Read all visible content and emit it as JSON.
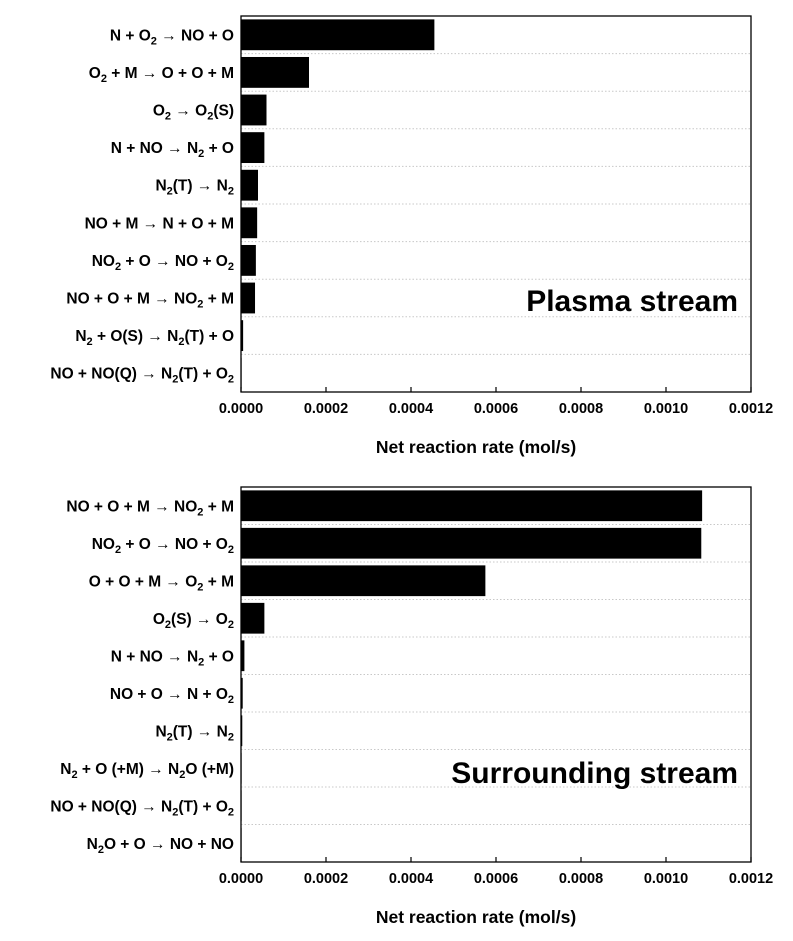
{
  "chart_data": [
    {
      "type": "bar",
      "orientation": "horizontal",
      "annotation": "Plasma stream",
      "xlabel": "Net reaction rate (mol/s)",
      "xlim": [
        0,
        0.0012
      ],
      "xticks": [
        "0.0000",
        "0.0002",
        "0.0004",
        "0.0006",
        "0.0008",
        "0.0010",
        "0.0012"
      ],
      "grid": "horizontal dotted",
      "categories": [
        [
          {
            "t": "N + O"
          },
          {
            "t": "2",
            "s": 1
          },
          {
            "t": " → NO + O"
          }
        ],
        [
          {
            "t": "O"
          },
          {
            "t": "2",
            "s": 1
          },
          {
            "t": " + M → O + O + M"
          }
        ],
        [
          {
            "t": "O"
          },
          {
            "t": "2",
            "s": 1
          },
          {
            "t": " → O"
          },
          {
            "t": "2",
            "s": 1
          },
          {
            "t": "(S)"
          }
        ],
        [
          {
            "t": "N + NO → N"
          },
          {
            "t": "2",
            "s": 1
          },
          {
            "t": " + O"
          }
        ],
        [
          {
            "t": "N"
          },
          {
            "t": "2",
            "s": 1
          },
          {
            "t": "(T) → N"
          },
          {
            "t": "2",
            "s": 1
          }
        ],
        [
          {
            "t": "NO + M → N + O + M"
          }
        ],
        [
          {
            "t": "NO"
          },
          {
            "t": "2",
            "s": 1
          },
          {
            "t": " + O → NO + O"
          },
          {
            "t": "2",
            "s": 1
          }
        ],
        [
          {
            "t": "NO + O + M → NO"
          },
          {
            "t": "2",
            "s": 1
          },
          {
            "t": " + M"
          }
        ],
        [
          {
            "t": "N"
          },
          {
            "t": "2",
            "s": 1
          },
          {
            "t": " + O(S) → N"
          },
          {
            "t": "2",
            "s": 1
          },
          {
            "t": "(T) + O"
          }
        ],
        [
          {
            "t": "NO + NO(Q) → N"
          },
          {
            "t": "2",
            "s": 1
          },
          {
            "t": "(T) + O"
          },
          {
            "t": "2",
            "s": 1
          }
        ]
      ],
      "values": [
        0.000455,
        0.00016,
        6e-05,
        5.5e-05,
        4e-05,
        3.8e-05,
        3.5e-05,
        3.3e-05,
        5e-06,
        5e-07
      ]
    },
    {
      "type": "bar",
      "orientation": "horizontal",
      "annotation": "Surrounding stream",
      "xlabel": "Net reaction rate (mol/s)",
      "xlim": [
        0,
        0.0012
      ],
      "xticks": [
        "0.0000",
        "0.0002",
        "0.0004",
        "0.0006",
        "0.0008",
        "0.0010",
        "0.0012"
      ],
      "grid": "horizontal dotted",
      "categories": [
        [
          {
            "t": "NO + O + M → NO"
          },
          {
            "t": "2",
            "s": 1
          },
          {
            "t": " + M"
          }
        ],
        [
          {
            "t": "NO"
          },
          {
            "t": "2",
            "s": 1
          },
          {
            "t": " + O → NO + O"
          },
          {
            "t": "2",
            "s": 1
          }
        ],
        [
          {
            "t": "O + O + M → O"
          },
          {
            "t": "2",
            "s": 1
          },
          {
            "t": " + M"
          }
        ],
        [
          {
            "t": "O"
          },
          {
            "t": "2",
            "s": 1
          },
          {
            "t": "(S) → O"
          },
          {
            "t": "2",
            "s": 1
          }
        ],
        [
          {
            "t": "N + NO → N"
          },
          {
            "t": "2",
            "s": 1
          },
          {
            "t": " + O"
          }
        ],
        [
          {
            "t": "NO + O → N + O"
          },
          {
            "t": "2",
            "s": 1
          }
        ],
        [
          {
            "t": "N"
          },
          {
            "t": "2",
            "s": 1
          },
          {
            "t": "(T) → N"
          },
          {
            "t": "2",
            "s": 1
          }
        ],
        [
          {
            "t": "N"
          },
          {
            "t": "2",
            "s": 1
          },
          {
            "t": " + O (+M) → N"
          },
          {
            "t": "2",
            "s": 1
          },
          {
            "t": "O (+M)"
          }
        ],
        [
          {
            "t": "NO + NO(Q) → N"
          },
          {
            "t": "2",
            "s": 1
          },
          {
            "t": "(T) + O"
          },
          {
            "t": "2",
            "s": 1
          }
        ],
        [
          {
            "t": "N"
          },
          {
            "t": "2",
            "s": 1
          },
          {
            "t": "O + O → NO + NO"
          }
        ]
      ],
      "values": [
        0.001085,
        0.001083,
        0.000575,
        5.5e-05,
        8e-06,
        4e-06,
        3e-06,
        1e-06,
        5e-07,
        3e-07
      ]
    }
  ]
}
